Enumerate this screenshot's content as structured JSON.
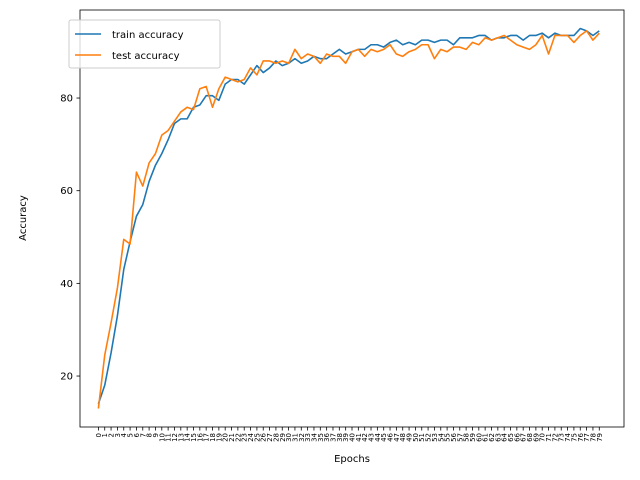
{
  "chart_data": {
    "type": "line",
    "xlabel": "Epochs",
    "ylabel": "Accuracy",
    "x": [
      0,
      1,
      2,
      3,
      4,
      5,
      6,
      7,
      8,
      9,
      10,
      11,
      12,
      13,
      14,
      15,
      16,
      17,
      18,
      19,
      20,
      21,
      22,
      23,
      24,
      25,
      26,
      27,
      28,
      29,
      30,
      31,
      32,
      33,
      34,
      35,
      36,
      37,
      38,
      39,
      40,
      41,
      42,
      43,
      44,
      45,
      46,
      47,
      48,
      49,
      50,
      51,
      52,
      53,
      54,
      55,
      56,
      57,
      58,
      59,
      60,
      61,
      62,
      63,
      64,
      65,
      66,
      67,
      68,
      69,
      70,
      71,
      72,
      73,
      74,
      75,
      76,
      77,
      78,
      79
    ],
    "xlim": [
      -2.9,
      82.9
    ],
    "ylim": [
      9.0,
      99.0
    ],
    "yticks": [
      20,
      40,
      60,
      80
    ],
    "legend_position": "upper-left",
    "grid": false,
    "series": [
      {
        "name": "train accuracy",
        "color": "#1f77b4",
        "values": [
          14.0,
          18.0,
          25.0,
          33.0,
          43.0,
          49.0,
          54.5,
          57.0,
          62.0,
          65.5,
          68.0,
          71.0,
          74.5,
          75.5,
          75.5,
          78.0,
          78.5,
          80.5,
          80.5,
          79.5,
          83.0,
          84.0,
          84.0,
          83.0,
          85.0,
          87.0,
          85.5,
          86.5,
          88.0,
          87.0,
          87.5,
          88.5,
          87.5,
          88.0,
          89.0,
          88.5,
          88.5,
          89.5,
          90.5,
          89.5,
          90.0,
          90.5,
          90.5,
          91.5,
          91.5,
          91.0,
          92.0,
          92.5,
          91.5,
          92.0,
          91.5,
          92.5,
          92.5,
          92.0,
          92.5,
          92.5,
          91.5,
          93.0,
          93.0,
          93.0,
          93.5,
          93.5,
          92.5,
          93.0,
          93.0,
          93.5,
          93.5,
          92.5,
          93.5,
          93.5,
          94.0,
          93.0,
          94.0,
          93.5,
          93.5,
          93.5,
          95.0,
          94.5,
          93.5,
          94.5
        ]
      },
      {
        "name": "test accuracy",
        "color": "#ff7f0e",
        "values": [
          13.0,
          24.5,
          31.5,
          39.0,
          49.5,
          48.5,
          64.0,
          61.0,
          66.0,
          68.0,
          72.0,
          73.0,
          75.0,
          77.0,
          78.0,
          77.5,
          82.0,
          82.5,
          78.0,
          82.0,
          84.5,
          84.0,
          83.5,
          84.0,
          86.5,
          85.0,
          88.0,
          88.0,
          87.5,
          88.0,
          87.5,
          90.5,
          88.5,
          89.5,
          89.0,
          87.5,
          89.5,
          89.0,
          89.0,
          87.5,
          90.0,
          90.5,
          89.0,
          90.5,
          90.0,
          90.5,
          91.5,
          89.5,
          89.0,
          90.0,
          90.5,
          91.5,
          91.5,
          88.5,
          90.5,
          90.0,
          91.0,
          91.0,
          90.5,
          92.0,
          91.5,
          93.0,
          92.5,
          93.0,
          93.5,
          92.5,
          91.5,
          91.0,
          90.5,
          91.5,
          93.5,
          89.5,
          93.5,
          93.5,
          93.5,
          92.0,
          93.5,
          94.5,
          92.5,
          94.0
        ]
      }
    ]
  }
}
